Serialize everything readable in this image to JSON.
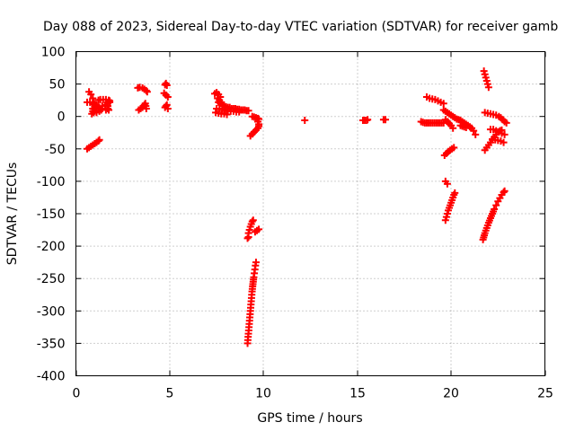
{
  "chart_data": {
    "type": "scatter",
    "title": "Day 088 of 2023, Sidereal Day-to-day VTEC variation (SDTVAR) for receiver gamb",
    "xlabel": "GPS time / hours",
    "ylabel": "SDTVAR / TECUs",
    "xlim": [
      0,
      25
    ],
    "ylim": [
      -400,
      100
    ],
    "xticks": [
      0,
      5,
      10,
      15,
      20,
      25
    ],
    "yticks": [
      100,
      50,
      0,
      -50,
      -100,
      -150,
      -200,
      -250,
      -300,
      -350,
      -400
    ],
    "grid": true,
    "marker": "+",
    "marker_color": "#ff0000",
    "series": [
      {
        "name": "SDTVAR",
        "segments": [
          [
            [
              0.6,
              -50
            ],
            [
              0.8,
              -46
            ],
            [
              1.0,
              -42
            ],
            [
              1.2,
              -38
            ],
            [
              1.25,
              -36
            ]
          ],
          [
            [
              0.7,
              38
            ],
            [
              0.8,
              34
            ],
            [
              0.9,
              28
            ],
            [
              0.95,
              22
            ],
            [
              1.0,
              15
            ],
            [
              0.9,
              8
            ],
            [
              0.85,
              4
            ]
          ],
          [
            [
              0.6,
              22
            ],
            [
              0.75,
              22
            ],
            [
              0.9,
              20
            ],
            [
              1.0,
              18
            ],
            [
              1.1,
              16
            ],
            [
              1.25,
              14
            ],
            [
              1.4,
              12
            ],
            [
              1.6,
              10
            ],
            [
              1.75,
              10
            ]
          ],
          [
            [
              0.9,
              12
            ],
            [
              1.05,
              12
            ],
            [
              1.2,
              14
            ],
            [
              1.4,
              16
            ],
            [
              1.55,
              18
            ],
            [
              1.7,
              20
            ],
            [
              1.8,
              22
            ]
          ],
          [
            [
              1.2,
              25
            ],
            [
              1.3,
              26
            ],
            [
              1.45,
              26
            ],
            [
              1.6,
              26
            ],
            [
              1.75,
              25
            ],
            [
              1.8,
              24
            ]
          ],
          [
            [
              0.95,
              6
            ],
            [
              1.1,
              6
            ],
            [
              1.25,
              8
            ],
            [
              1.35,
              10
            ]
          ],
          [
            [
              1.7,
              12
            ],
            [
              1.7,
              16
            ],
            [
              1.7,
              20
            ]
          ],
          [
            [
              3.3,
              44
            ],
            [
              3.4,
              45
            ],
            [
              3.55,
              44
            ],
            [
              3.65,
              42
            ],
            [
              3.75,
              40
            ],
            [
              3.8,
              38
            ]
          ],
          [
            [
              3.35,
              10
            ],
            [
              3.45,
              12
            ],
            [
              3.55,
              14
            ],
            [
              3.6,
              16
            ],
            [
              3.65,
              18
            ],
            [
              3.7,
              20
            ],
            [
              3.75,
              12
            ]
          ],
          [
            [
              4.8,
              51
            ],
            [
              4.75,
              49
            ],
            [
              4.85,
              48
            ]
          ],
          [
            [
              4.7,
              36
            ],
            [
              4.8,
              33
            ],
            [
              4.9,
              30
            ]
          ],
          [
            [
              4.75,
              14
            ],
            [
              4.8,
              16
            ],
            [
              4.85,
              18
            ],
            [
              4.9,
              12
            ]
          ],
          [
            [
              7.4,
              35
            ],
            [
              7.5,
              37
            ],
            [
              7.6,
              34
            ],
            [
              7.7,
              30
            ]
          ],
          [
            [
              7.6,
              22
            ],
            [
              7.7,
              20
            ],
            [
              7.8,
              18
            ],
            [
              7.9,
              16
            ],
            [
              8.0,
              15
            ],
            [
              8.1,
              14
            ],
            [
              8.2,
              14
            ],
            [
              8.3,
              12
            ],
            [
              8.4,
              12
            ],
            [
              8.5,
              12
            ],
            [
              8.6,
              11
            ],
            [
              8.7,
              11
            ],
            [
              8.8,
              10
            ],
            [
              8.9,
              10
            ],
            [
              9.0,
              10
            ],
            [
              9.1,
              9
            ],
            [
              9.2,
              9
            ]
          ],
          [
            [
              7.5,
              12
            ],
            [
              7.65,
              12
            ],
            [
              7.8,
              11
            ],
            [
              7.95,
              10
            ],
            [
              8.1,
              9
            ],
            [
              8.25,
              8
            ],
            [
              8.4,
              8
            ],
            [
              8.55,
              7
            ],
            [
              8.7,
              7
            ]
          ],
          [
            [
              7.45,
              6
            ],
            [
              7.6,
              5
            ],
            [
              7.75,
              4
            ],
            [
              7.9,
              4
            ],
            [
              8.05,
              3
            ]
          ],
          [
            [
              7.55,
              28
            ],
            [
              7.65,
              25
            ],
            [
              7.75,
              22
            ]
          ],
          [
            [
              9.4,
              0
            ],
            [
              9.5,
              -1
            ],
            [
              9.6,
              -2
            ],
            [
              9.7,
              -3
            ],
            [
              9.75,
              -4
            ]
          ],
          [
            [
              9.3,
              -30
            ],
            [
              9.4,
              -27
            ],
            [
              9.5,
              -24
            ],
            [
              9.6,
              -21
            ],
            [
              9.7,
              -18
            ],
            [
              9.75,
              -15
            ],
            [
              9.75,
              -12
            ],
            [
              9.7,
              -8
            ]
          ],
          [
            [
              9.2,
              -180
            ],
            [
              9.25,
              -175
            ],
            [
              9.3,
              -170
            ],
            [
              9.35,
              -166
            ],
            [
              9.4,
              -162
            ],
            [
              9.45,
              -160
            ]
          ],
          [
            [
              9.15,
              -188
            ],
            [
              9.2,
              -186
            ]
          ],
          [
            [
              9.55,
              -178
            ],
            [
              9.65,
              -176
            ],
            [
              9.75,
              -174
            ]
          ],
          [
            [
              9.15,
              -350
            ],
            [
              9.18,
              -340
            ],
            [
              9.21,
              -330
            ],
            [
              9.24,
              -320
            ],
            [
              9.27,
              -310
            ],
            [
              9.3,
              -300
            ],
            [
              9.33,
              -290
            ],
            [
              9.36,
              -280
            ],
            [
              9.39,
              -270
            ],
            [
              9.42,
              -262
            ],
            [
              9.45,
              -255
            ],
            [
              9.48,
              -248
            ],
            [
              9.51,
              -242
            ],
            [
              9.54,
              -236
            ],
            [
              9.57,
              -230
            ],
            [
              9.6,
              -225
            ]
          ],
          [
            [
              12.2,
              -6
            ]
          ],
          [
            [
              15.3,
              -6
            ],
            [
              15.4,
              -6
            ],
            [
              15.5,
              -6
            ],
            [
              15.55,
              -5
            ]
          ],
          [
            [
              16.4,
              -5
            ],
            [
              16.5,
              -5
            ]
          ],
          [
            [
              18.4,
              -8
            ],
            [
              18.5,
              -9
            ],
            [
              18.6,
              -10
            ],
            [
              18.7,
              -10
            ],
            [
              18.8,
              -10
            ],
            [
              18.9,
              -10
            ],
            [
              19.0,
              -10
            ],
            [
              19.1,
              -10
            ],
            [
              19.2,
              -10
            ],
            [
              19.3,
              -10
            ],
            [
              19.4,
              -10
            ],
            [
              19.5,
              -10
            ],
            [
              19.6,
              -10
            ]
          ],
          [
            [
              18.7,
              30
            ],
            [
              18.85,
              28
            ],
            [
              19.0,
              27
            ],
            [
              19.15,
              26
            ],
            [
              19.3,
              24
            ],
            [
              19.45,
              22
            ],
            [
              19.6,
              20
            ]
          ],
          [
            [
              19.6,
              10
            ],
            [
              19.7,
              8
            ],
            [
              19.8,
              6
            ],
            [
              19.9,
              4
            ],
            [
              20.0,
              2
            ],
            [
              20.1,
              0
            ],
            [
              20.2,
              -2
            ],
            [
              20.3,
              -4
            ]
          ],
          [
            [
              19.7,
              -5
            ],
            [
              19.8,
              -8
            ],
            [
              19.9,
              -11
            ],
            [
              20.0,
              -14
            ],
            [
              20.1,
              -18
            ]
          ],
          [
            [
              19.65,
              -60
            ],
            [
              19.75,
              -57
            ],
            [
              19.85,
              -54
            ],
            [
              19.95,
              -52
            ],
            [
              20.05,
              -50
            ],
            [
              20.15,
              -48
            ]
          ],
          [
            [
              19.7,
              -100
            ],
            [
              19.8,
              -104
            ]
          ],
          [
            [
              19.7,
              -160
            ],
            [
              19.75,
              -155
            ],
            [
              19.8,
              -150
            ],
            [
              19.85,
              -145
            ],
            [
              19.9,
              -141
            ],
            [
              19.95,
              -137
            ],
            [
              20.0,
              -133
            ],
            [
              20.05,
              -129
            ],
            [
              20.1,
              -125
            ],
            [
              20.15,
              -121
            ],
            [
              20.2,
              -118
            ]
          ],
          [
            [
              20.4,
              -5
            ],
            [
              20.5,
              -6
            ],
            [
              20.6,
              -8
            ],
            [
              20.7,
              -10
            ],
            [
              20.8,
              -12
            ],
            [
              20.9,
              -14
            ],
            [
              21.0,
              -16
            ],
            [
              21.1,
              -18
            ],
            [
              21.2,
              -22
            ],
            [
              21.3,
              -28
            ]
          ],
          [
            [
              20.5,
              -14
            ],
            [
              20.6,
              -15
            ],
            [
              20.7,
              -16
            ],
            [
              20.8,
              -17
            ]
          ],
          [
            [
              21.75,
              70
            ],
            [
              21.8,
              65
            ],
            [
              21.85,
              60
            ],
            [
              21.9,
              55
            ],
            [
              21.95,
              50
            ],
            [
              22.0,
              45
            ]
          ],
          [
            [
              21.8,
              6
            ],
            [
              21.95,
              5
            ],
            [
              22.1,
              4
            ],
            [
              22.25,
              3
            ],
            [
              22.4,
              2
            ],
            [
              22.55,
              0
            ],
            [
              22.65,
              -2
            ],
            [
              22.75,
              -5
            ],
            [
              22.85,
              -8
            ],
            [
              22.95,
              -10
            ]
          ],
          [
            [
              21.8,
              -52
            ],
            [
              21.9,
              -48
            ],
            [
              22.0,
              -44
            ],
            [
              22.1,
              -40
            ],
            [
              22.2,
              -36
            ],
            [
              22.3,
              -32
            ],
            [
              22.4,
              -28
            ],
            [
              22.5,
              -24
            ],
            [
              22.6,
              -22
            ],
            [
              22.7,
              -21
            ]
          ],
          [
            [
              22.1,
              -20
            ],
            [
              22.25,
              -20
            ],
            [
              22.4,
              -22
            ],
            [
              22.55,
              -24
            ],
            [
              22.7,
              -26
            ],
            [
              22.85,
              -28
            ]
          ],
          [
            [
              22.2,
              -35
            ],
            [
              22.35,
              -36
            ],
            [
              22.5,
              -37
            ],
            [
              22.65,
              -38
            ],
            [
              22.8,
              -40
            ]
          ],
          [
            [
              21.7,
              -190
            ],
            [
              21.8,
              -180
            ],
            [
              21.9,
              -172
            ],
            [
              22.0,
              -164
            ],
            [
              22.1,
              -157
            ],
            [
              22.2,
              -150
            ],
            [
              22.3,
              -143
            ],
            [
              22.4,
              -137
            ],
            [
              22.5,
              -131
            ],
            [
              22.6,
              -126
            ],
            [
              22.7,
              -121
            ],
            [
              22.8,
              -117
            ],
            [
              22.85,
              -115
            ]
          ]
        ]
      }
    ]
  }
}
